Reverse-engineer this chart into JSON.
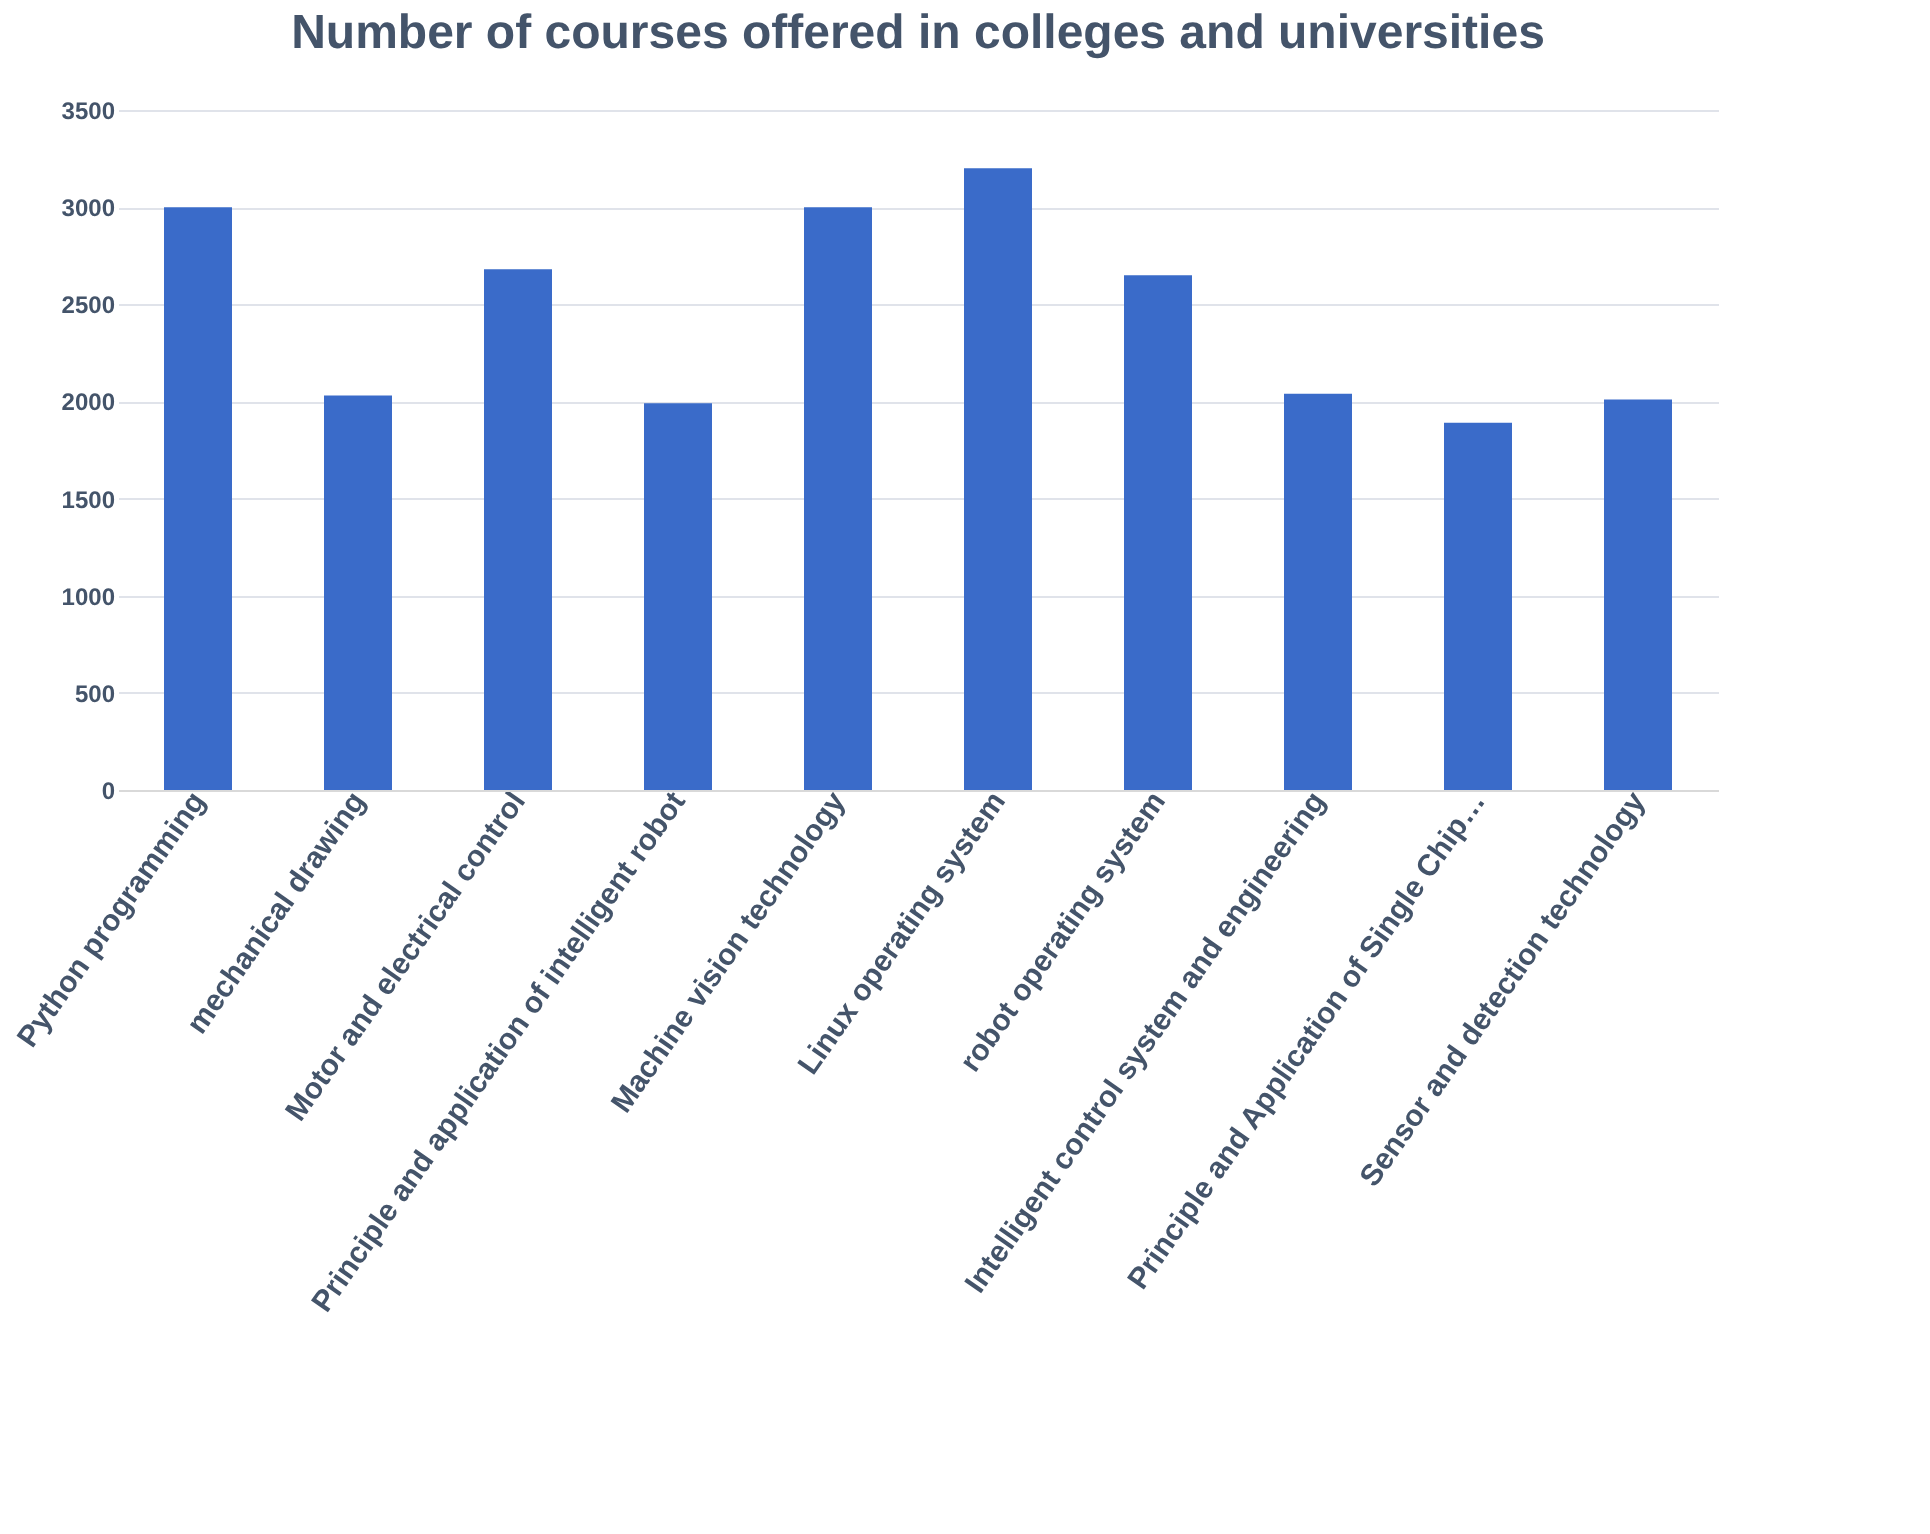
{
  "chart_data": {
    "type": "bar",
    "title": "Number of courses offered in colleges and universities",
    "categories": [
      "Python programming",
      "mechanical drawing",
      "Motor and electrical control",
      "Principle and application of intelligent robot",
      "Machine vision technology",
      "Linux operating system",
      "robot operating system",
      "Intelligent control system and engineering",
      "Principle and Application of Single Chip…",
      "Sensor and detection technology"
    ],
    "values": [
      3000,
      2030,
      2680,
      1990,
      3000,
      3200,
      2650,
      2040,
      1890,
      2010
    ],
    "color": "#3a6bc9",
    "ylim": [
      0,
      3500
    ],
    "yticks": [
      0,
      500,
      1000,
      1500,
      2000,
      2500,
      3000,
      3500
    ],
    "grid": "y"
  }
}
